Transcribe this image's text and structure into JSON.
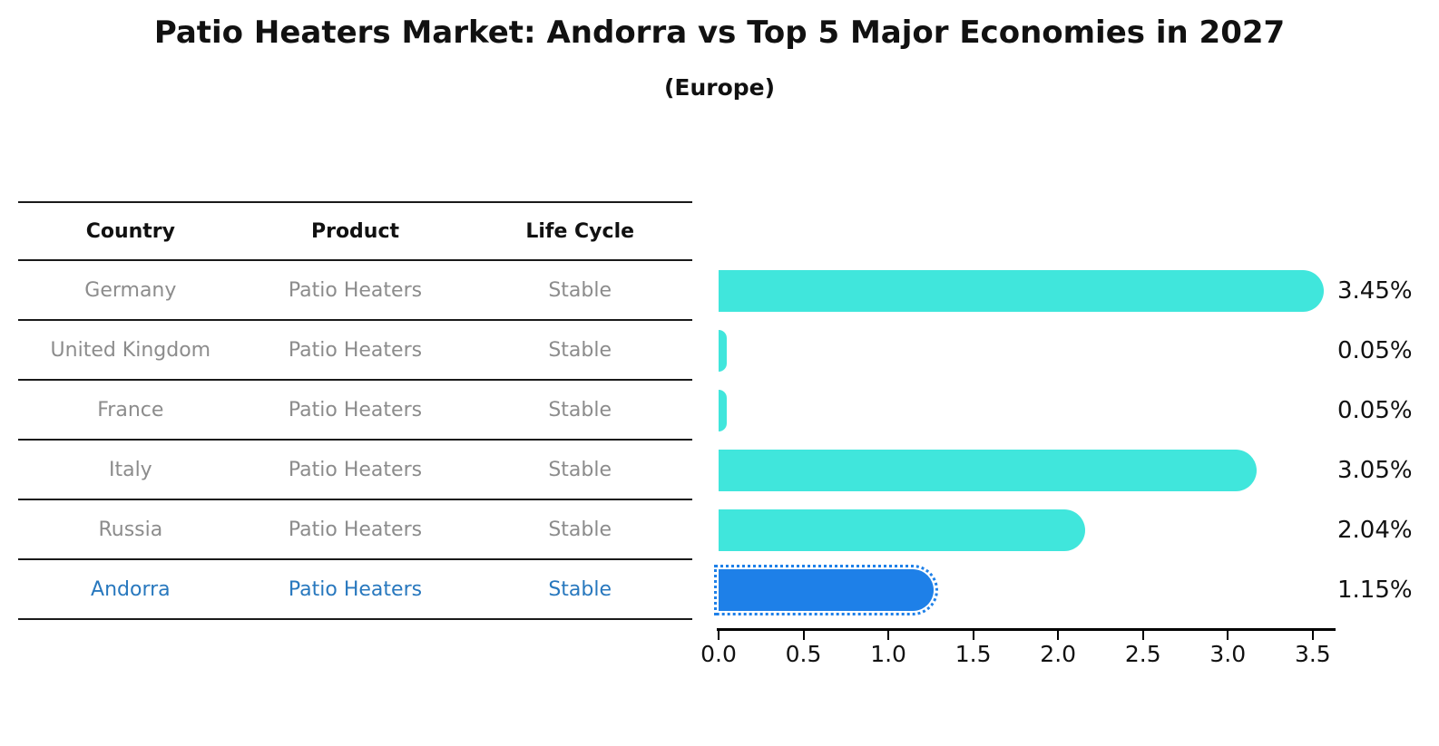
{
  "title": "Patio Heaters Market: Andorra vs Top 5 Major Economies in 2027",
  "subtitle": "(Europe)",
  "table": {
    "headers": [
      "Country",
      "Product",
      "Life Cycle"
    ],
    "rows": [
      {
        "country": "Germany",
        "product": "Patio Heaters",
        "life_cycle": "Stable",
        "highlighted": false
      },
      {
        "country": "United Kingdom",
        "product": "Patio Heaters",
        "life_cycle": "Stable",
        "highlighted": false
      },
      {
        "country": "France",
        "product": "Patio Heaters",
        "life_cycle": "Stable",
        "highlighted": false
      },
      {
        "country": "Italy",
        "product": "Patio Heaters",
        "life_cycle": "Stable",
        "highlighted": false
      },
      {
        "country": "Russia",
        "product": "Patio Heaters",
        "life_cycle": "Stable",
        "highlighted": false
      },
      {
        "country": "Andorra",
        "product": "Patio Heaters",
        "life_cycle": "Stable",
        "highlighted": true
      }
    ]
  },
  "chart_data": {
    "type": "bar",
    "orientation": "horizontal",
    "title": "Patio Heaters Market: Andorra vs Top 5 Major Economies in 2027",
    "subtitle": "(Europe)",
    "categories": [
      "Germany",
      "United Kingdom",
      "France",
      "Italy",
      "Russia",
      "Andorra"
    ],
    "values": [
      3.45,
      0.05,
      0.05,
      3.05,
      2.04,
      1.15
    ],
    "value_labels": [
      "3.45%",
      "0.05%",
      "0.05%",
      "3.05%",
      "2.04%",
      "1.15%"
    ],
    "x_ticks": [
      "0.0",
      "0.5",
      "1.0",
      "1.5",
      "2.0",
      "2.5",
      "3.0",
      "3.5"
    ],
    "xlim": [
      0,
      3.6
    ],
    "grid": false,
    "legend": "none",
    "bar_color": "#40e6dc",
    "highlight_color": "#1e80e8",
    "highlight_index": 5,
    "highlight_style": "dotted-edge"
  },
  "colors": {
    "text_dark": "#111111",
    "text_gray": "#8c8c8c",
    "highlight_text": "#2878be",
    "line": "#1a1a1a"
  }
}
